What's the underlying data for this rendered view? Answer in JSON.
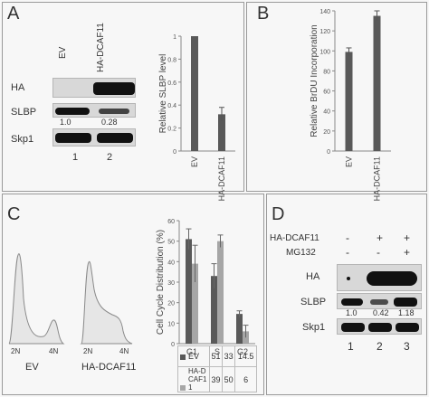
{
  "panel_a": {
    "label": "A",
    "lanes": [
      "EV",
      "HA-DCAF11"
    ],
    "row_labels": [
      "HA",
      "SLBP",
      "Skp1"
    ],
    "slbp_quant": [
      "1.0",
      "0.28"
    ],
    "lane_numbers": [
      "1",
      "2"
    ]
  },
  "panel_b": {
    "label": "B"
  },
  "panel_c": {
    "label": "C",
    "flow_labels": [
      "2N",
      "4N",
      "EV",
      "2N",
      "4N",
      "HA-DCAF11"
    ]
  },
  "panel_d": {
    "label": "D",
    "treatments": [
      {
        "name": "HA-DCAF11",
        "marks": [
          "-",
          "+",
          "+"
        ]
      },
      {
        "name": "MG132",
        "marks": [
          "-",
          "-",
          "+"
        ]
      }
    ],
    "row_labels": [
      "HA",
      "SLBP",
      "Skp1"
    ],
    "slbp_quant": [
      "1.0",
      "0.42",
      "1.18"
    ],
    "lane_numbers": [
      "1",
      "2",
      "3"
    ]
  },
  "chart_data": [
    {
      "type": "bar",
      "categories": [
        "EV",
        "HA-DCAF11"
      ],
      "values": [
        1.0,
        0.32
      ],
      "errors": [
        0,
        0.06
      ],
      "ylabel": "Relative SLBP level",
      "ylim": [
        0,
        1
      ],
      "ticks": [
        "0",
        "0.2",
        "0.4",
        "0.6",
        "0.8",
        "1"
      ],
      "color": "#595959"
    },
    {
      "type": "bar",
      "categories": [
        "EV",
        "HA-DCAF11"
      ],
      "values": [
        99,
        135
      ],
      "errors": [
        4,
        5
      ],
      "ylabel": "Relative BrDU Incorporation",
      "ylim": [
        0,
        140
      ],
      "ticks": [
        "0",
        "20",
        "40",
        "60",
        "80",
        "100",
        "120",
        "140"
      ],
      "color": "#595959"
    },
    {
      "type": "bar",
      "categories": [
        "G1",
        "S",
        "G2"
      ],
      "series": [
        {
          "name": "EV",
          "values": [
            51,
            33,
            14.5
          ],
          "errors": [
            5,
            6,
            1.5
          ],
          "color": "#595959",
          "labels": [
            "51",
            "33",
            "14.5"
          ]
        },
        {
          "name": "HA-DCAF11",
          "values": [
            39,
            50,
            6
          ],
          "errors": [
            9,
            3,
            3
          ],
          "color": "#a6a6a6",
          "labels": [
            "39",
            "50",
            "6"
          ]
        }
      ],
      "ylabel": "Cell Cycle Distribution (%)",
      "ylim": [
        0,
        60
      ],
      "ticks": [
        "0",
        "10",
        "20",
        "30",
        "40",
        "50",
        "60"
      ]
    }
  ]
}
